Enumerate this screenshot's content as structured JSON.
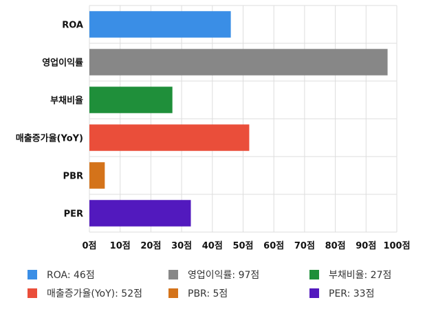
{
  "chart_data": {
    "type": "bar",
    "orientation": "horizontal",
    "categories": [
      "ROA",
      "영업이익률",
      "부채비율",
      "매출증가율(YoY)",
      "PBR",
      "PER"
    ],
    "values": [
      46,
      97,
      27,
      52,
      5,
      33
    ],
    "colors": [
      "#3a8ee6",
      "#878787",
      "#1f8f3a",
      "#ea4e3a",
      "#d4731a",
      "#5219be"
    ],
    "xlim": [
      0,
      100
    ],
    "x_ticks": [
      0,
      10,
      20,
      30,
      40,
      50,
      60,
      70,
      80,
      90,
      100
    ],
    "x_tick_labels": [
      "0점",
      "10점",
      "20점",
      "30점",
      "40점",
      "50점",
      "60점",
      "70점",
      "80점",
      "90점",
      "100점"
    ],
    "grid": true,
    "legend_position": "bottom"
  },
  "legend": {
    "items": [
      {
        "label": "ROA: 46점",
        "color": "#3a8ee6"
      },
      {
        "label": "영업이익률: 97점",
        "color": "#878787"
      },
      {
        "label": "부채비율: 27점",
        "color": "#1f8f3a"
      },
      {
        "label": "매출증가율(YoY): 52점",
        "color": "#ea4e3a"
      },
      {
        "label": "PBR: 5점",
        "color": "#d4731a"
      },
      {
        "label": "PER: 33점",
        "color": "#5219be"
      }
    ]
  }
}
